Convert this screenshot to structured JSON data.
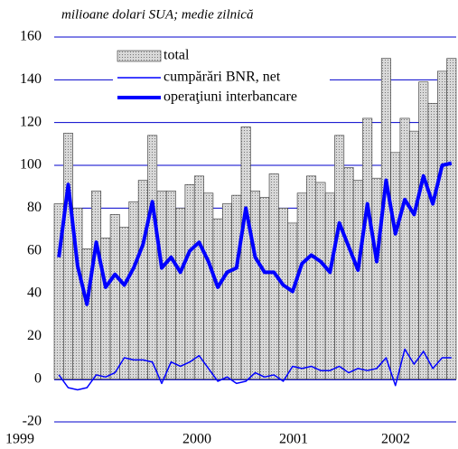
{
  "chart_data": {
    "type": "bar_line",
    "subtitle": "milioane dolari SUA; medie zilnică",
    "categories": [
      "1999",
      null,
      null,
      null,
      null,
      null,
      null,
      null,
      null,
      null,
      null,
      null,
      "2000",
      null,
      null,
      null,
      null,
      null,
      null,
      null,
      null,
      null,
      null,
      null,
      "2001",
      null,
      null,
      null,
      null,
      null,
      null,
      null,
      null,
      null,
      null,
      null,
      "2002",
      null,
      null,
      null,
      null,
      null,
      null
    ],
    "series": [
      {
        "name": "total",
        "color": "#c8c8c8",
        "values": [
          82,
          115,
          80,
          61,
          88,
          66,
          77,
          71,
          83,
          93,
          114,
          88,
          88,
          80,
          91,
          95,
          87,
          75,
          82,
          86,
          118,
          88,
          85,
          96,
          80,
          73,
          87,
          95,
          92,
          87,
          114,
          99,
          93,
          122,
          94,
          150,
          106,
          122,
          116,
          139,
          129,
          144,
          150
        ]
      },
      {
        "name": "cumpărări BNR, net",
        "color": "#0000ff",
        "values": [
          2,
          -4,
          -5,
          -4,
          2,
          1,
          3,
          10,
          9,
          9,
          8,
          -2,
          8,
          6,
          8,
          11,
          5,
          -1,
          1,
          -2,
          -1,
          3,
          1,
          2,
          -1,
          6,
          5,
          6,
          4,
          4,
          6,
          3,
          5,
          4,
          5,
          10,
          -3,
          14,
          7,
          13,
          5,
          10,
          10
        ]
      },
      {
        "name": "operaţiuni interbancare",
        "color": "#0000ff",
        "values": [
          57,
          91,
          53,
          35,
          64,
          43,
          49,
          44,
          52,
          63,
          83,
          52,
          57,
          50,
          60,
          64,
          55,
          43,
          50,
          52,
          80,
          57,
          50,
          50,
          44,
          41,
          54,
          58,
          55,
          50,
          73,
          62,
          51,
          82,
          55,
          93,
          68,
          84,
          77,
          95,
          82,
          100,
          101
        ]
      }
    ],
    "ylim": [
      -20,
      160
    ],
    "yticks": [
      -20,
      0,
      20,
      40,
      60,
      80,
      100,
      120,
      140,
      160
    ],
    "grid": true
  }
}
